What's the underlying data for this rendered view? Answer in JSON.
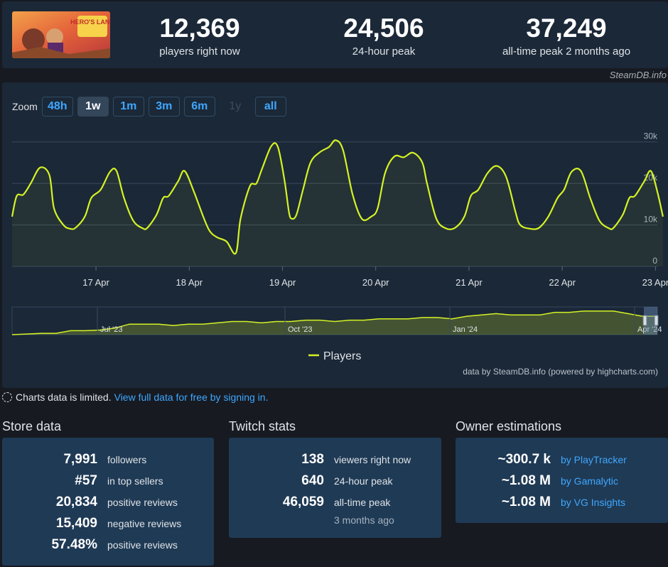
{
  "header": {
    "game_logo_text": "HERO'S LAND",
    "stats": [
      {
        "value": "12,369",
        "label": "players right now"
      },
      {
        "value": "24,506",
        "label": "24-hour peak"
      },
      {
        "value": "37,249",
        "label": "all-time peak 2 months ago"
      }
    ],
    "credit": "SteamDB.info"
  },
  "chart": {
    "zoom_label": "Zoom",
    "zoom_buttons": [
      {
        "label": "48h",
        "state": "normal"
      },
      {
        "label": "1w",
        "state": "active"
      },
      {
        "label": "1m",
        "state": "normal"
      },
      {
        "label": "3m",
        "state": "normal"
      },
      {
        "label": "6m",
        "state": "normal"
      },
      {
        "label": "1y",
        "state": "disabled"
      },
      {
        "label": "all",
        "state": "normal"
      }
    ],
    "legend": "Players",
    "credit": "data by SteamDB.info (powered by highcharts.com)",
    "line_color": "#d4f224"
  },
  "chart_data": {
    "type": "line",
    "series": [
      {
        "name": "Players"
      }
    ],
    "x_ticks": [
      "17 Apr",
      "18 Apr",
      "19 Apr",
      "20 Apr",
      "21 Apr",
      "22 Apr",
      "23 Apr"
    ],
    "y_ticks": [
      "0",
      "10k",
      "20k",
      "30k"
    ],
    "ylim": [
      0,
      32000
    ],
    "grid": true,
    "legend_position": "bottom",
    "main": {
      "x_days": [
        0,
        0.05,
        0.12,
        0.2,
        0.3,
        0.4,
        0.45,
        0.55,
        0.62,
        0.68,
        0.78,
        0.85,
        0.95,
        1.05,
        1.12,
        1.2,
        1.3,
        1.4,
        1.45,
        1.55,
        1.62,
        1.68,
        1.78,
        1.85,
        1.95,
        2.05,
        2.12,
        2.2,
        2.3,
        2.4,
        2.45,
        2.55,
        2.62,
        2.68,
        2.78,
        2.85,
        2.92,
        2.97,
        3.0,
        3.05,
        3.12,
        3.2,
        3.3,
        3.4,
        3.47,
        3.55,
        3.65,
        3.75,
        3.85,
        3.92,
        4.0,
        4.1,
        4.2,
        4.3,
        4.4,
        4.45,
        4.55,
        4.65,
        4.75,
        4.85,
        4.92,
        5.0,
        5.1,
        5.2,
        5.3,
        5.4,
        5.45,
        5.55,
        5.65,
        5.75,
        5.85,
        5.92,
        6.0,
        6.1,
        6.2,
        6.3,
        6.4,
        6.45,
        6.55,
        6.62,
        6.68,
        6.78,
        6.85,
        6.92,
        6.98
      ],
      "players": [
        12000,
        17000,
        17300,
        20000,
        23800,
        22000,
        14000,
        10000,
        9100,
        9300,
        12000,
        16500,
        18500,
        22800,
        23000,
        16500,
        11000,
        9200,
        9300,
        12500,
        16500,
        17000,
        20500,
        23000,
        18000,
        12000,
        8500,
        7000,
        6000,
        3200,
        11500,
        19300,
        20000,
        23500,
        29000,
        28800,
        21000,
        13000,
        11500,
        12500,
        18500,
        25000,
        27500,
        28800,
        30400,
        28000,
        17500,
        11500,
        12000,
        14000,
        22500,
        26500,
        26300,
        27400,
        25000,
        20000,
        11500,
        9200,
        9300,
        12000,
        17000,
        18500,
        22500,
        24200,
        21500,
        13000,
        10000,
        9100,
        9300,
        12000,
        16500,
        18500,
        22800,
        23000,
        16500,
        11000,
        9200,
        9300,
        12500,
        16500,
        17000,
        20500,
        23000,
        18000,
        12000
      ]
    },
    "navigator": {
      "x_ticks": [
        "Jul '23",
        "Oct '23",
        "Jan '24",
        "Apr '24"
      ],
      "values": [
        0,
        0.5,
        1,
        1,
        3,
        3,
        3.5,
        5,
        8,
        8,
        8,
        7,
        8,
        8,
        9,
        10,
        10,
        9,
        10,
        10,
        11,
        11,
        10,
        11,
        11,
        12,
        12,
        12,
        13,
        13,
        12,
        14,
        15,
        16,
        15,
        15,
        15,
        17,
        17,
        18,
        18,
        18,
        16,
        14,
        14
      ]
    }
  },
  "notice": {
    "text": "Charts data is limited.",
    "link": "View full data for free by signing in."
  },
  "store": {
    "title": "Store data",
    "rows": [
      {
        "value": "7,991",
        "label": "followers"
      },
      {
        "value": "#57",
        "label": "in top sellers"
      },
      {
        "value": "20,834",
        "label": "positive reviews"
      },
      {
        "value": "15,409",
        "label": "negative reviews"
      },
      {
        "value": "57.48%",
        "label": "positive reviews"
      }
    ]
  },
  "twitch": {
    "title": "Twitch stats",
    "rows": [
      {
        "value": "138",
        "label": "viewers right now"
      },
      {
        "value": "640",
        "label": "24-hour peak"
      },
      {
        "value": "46,059",
        "label": "all-time peak"
      }
    ],
    "sub": "3 months ago"
  },
  "owners": {
    "title": "Owner estimations",
    "rows": [
      {
        "value": "~300.7 k",
        "label": "by PlayTracker"
      },
      {
        "value": "~1.08 M",
        "label": "by Gamalytic"
      },
      {
        "value": "~1.08 M",
        "label": "by VG Insights"
      }
    ]
  }
}
